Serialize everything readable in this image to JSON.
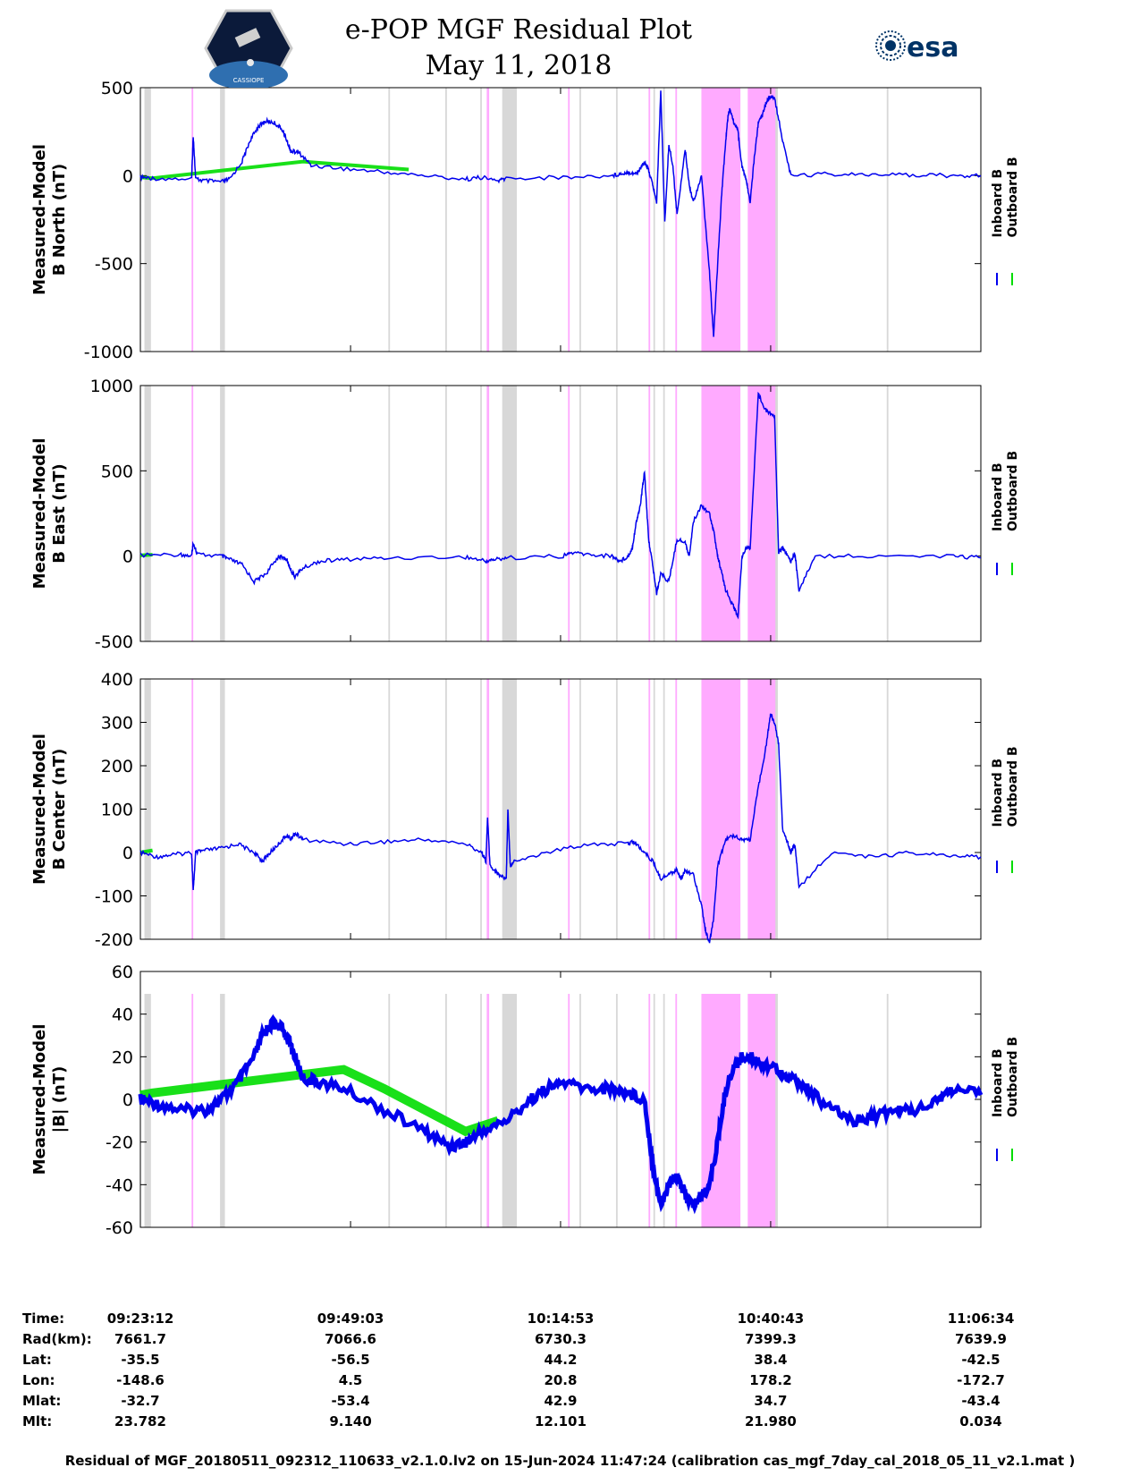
{
  "header": {
    "title": "e-POP MGF Residual Plot",
    "date": "May 11, 2018",
    "left_logo": "CASSIOPE mission logo",
    "left_logo_text": "CASSIOPE",
    "right_logo": "esa-logo",
    "right_logo_text": "esa"
  },
  "chart_data": {
    "type": "line",
    "x_range_minutes": [
      0,
      103.37
    ],
    "x_ticks_minutes": [
      0,
      25.85,
      51.68,
      77.52,
      103.37
    ],
    "colors": {
      "inboard": "#0000ee",
      "outboard": "#00dd00",
      "gray_band": "#d8d8d8",
      "pink_band": "#ffaaff"
    },
    "gray_bands": [
      [
        0.5,
        1.3
      ],
      [
        9.8,
        10.4
      ],
      [
        30.5,
        30.7
      ],
      [
        37.5,
        37.7
      ],
      [
        41.8,
        42.0
      ],
      [
        44.5,
        46.3
      ],
      [
        54.0,
        54.2
      ],
      [
        58.5,
        58.7
      ],
      [
        63.1,
        63.3
      ],
      [
        64.3,
        64.5
      ],
      [
        76.0,
        78.4
      ],
      [
        91.8,
        92.0
      ]
    ],
    "pink_bands": [
      [
        6.3,
        6.5
      ],
      [
        42.6,
        42.9
      ],
      [
        52.6,
        52.8
      ],
      [
        62.5,
        62.7
      ],
      [
        65.8,
        66.0
      ],
      [
        69.0,
        73.8
      ],
      [
        74.7,
        78.1
      ]
    ],
    "panels": [
      {
        "ylabel_line1": "Measured-Model",
        "ylabel_line2": "B North (nT)",
        "ylim": [
          -1000,
          500
        ],
        "yticks": [
          "500",
          "0",
          "-500",
          "-1000"
        ],
        "ytick_values": [
          500,
          0,
          -500,
          -1000
        ],
        "legend": [
          "Inboard B",
          "Outboard B"
        ],
        "outboard_x": [
          0.0,
          1.5,
          20.0,
          33.0
        ],
        "outboard_y": [
          -10,
          -15,
          80,
          35
        ],
        "inboard": {
          "x": [
            0,
            1.5,
            6.3,
            6.5,
            6.8,
            8.0,
            10.0,
            11.0,
            12.5,
            13.5,
            14.5,
            15.5,
            16.5,
            17.5,
            18.0,
            18.5,
            19.5,
            21.0,
            25.0,
            30.0,
            35.0,
            40.0,
            42.0,
            44.0,
            45.0,
            52.0,
            58.0,
            59.0,
            60.0,
            61.0,
            61.5,
            62.0,
            62.5,
            63.0,
            63.5,
            64.0,
            64.5,
            65.0,
            65.5,
            66.0,
            67.0,
            67.5,
            68.0,
            69.0,
            70.0,
            70.5,
            71.0,
            71.5,
            72.0,
            72.3,
            72.5,
            73.0,
            73.5,
            74.0,
            74.5,
            75.0,
            75.5,
            76.0,
            76.5,
            77.0,
            77.5,
            78.0,
            79.0,
            80.0,
            85.0,
            90.0,
            95.0,
            100.0,
            103.37
          ],
          "y": [
            -10,
            -15,
            -20,
            230,
            -20,
            -30,
            -35,
            -20,
            80,
            200,
            280,
            310,
            300,
            260,
            200,
            140,
            130,
            60,
            40,
            20,
            0,
            -20,
            -10,
            -30,
            -15,
            -10,
            0,
            10,
            20,
            10,
            40,
            80,
            30,
            -50,
            -150,
            480,
            -270,
            180,
            50,
            -220,
            150,
            -50,
            -150,
            0,
            -550,
            -920,
            -500,
            -100,
            200,
            350,
            380,
            300,
            250,
            50,
            -20,
            -150,
            100,
            300,
            350,
            420,
            450,
            440,
            200,
            0,
            10,
            0,
            5,
            0,
            0
          ]
        }
      },
      {
        "ylabel_line1": "Measured-Model",
        "ylabel_line2": "B East (nT)",
        "ylim": [
          -500,
          1000
        ],
        "yticks": [
          "1000",
          "500",
          "0",
          "-500"
        ],
        "ytick_values": [
          1000,
          500,
          0,
          -500
        ],
        "legend": [
          "Inboard B",
          "Outboard B"
        ],
        "outboard_x": [
          0.0,
          1.5
        ],
        "outboard_y": [
          5,
          8
        ],
        "inboard": {
          "x": [
            0,
            5.0,
            6.3,
            6.5,
            7.0,
            10.0,
            11.0,
            12.5,
            14.0,
            15.5,
            17.0,
            18.0,
            18.5,
            19.0,
            20.0,
            22.0,
            25.0,
            30.0,
            40.0,
            42.5,
            43.5,
            45.0,
            52.0,
            53.0,
            55.0,
            58.0,
            59.0,
            60.0,
            60.5,
            61.0,
            61.5,
            62.0,
            62.5,
            63.0,
            63.5,
            64.0,
            65.0,
            66.0,
            67.0,
            67.5,
            68.0,
            69.0,
            70.0,
            70.5,
            71.0,
            71.5,
            72.0,
            73.0,
            73.5,
            74.0,
            74.5,
            75.0,
            76.0,
            77.0,
            78.0,
            78.5,
            79.0,
            79.5,
            80.0,
            80.5,
            81.0,
            83.0,
            90.0,
            100.0,
            103.37
          ],
          "y": [
            5,
            10,
            0,
            80,
            10,
            0,
            -20,
            -50,
            -150,
            -100,
            0,
            -20,
            -80,
            -120,
            -70,
            -30,
            -20,
            -10,
            -5,
            -30,
            -20,
            -10,
            0,
            20,
            10,
            0,
            -30,
            0,
            50,
            200,
            300,
            500,
            100,
            -50,
            -220,
            -100,
            -150,
            100,
            80,
            0,
            200,
            300,
            250,
            150,
            0,
            -100,
            -200,
            -300,
            -360,
            0,
            50,
            50,
            950,
            850,
            820,
            20,
            50,
            10,
            -30,
            20,
            -200,
            0,
            0,
            0,
            -10
          ]
        }
      },
      {
        "ylabel_line1": "Measured-Model",
        "ylabel_line2": "B Center (nT)",
        "ylim": [
          -200,
          400
        ],
        "yticks": [
          "400",
          "300",
          "200",
          "100",
          "0",
          "-100",
          "-200"
        ],
        "ytick_values": [
          400,
          300,
          200,
          100,
          0,
          -100,
          -200
        ],
        "legend": [
          "Inboard B",
          "Outboard B"
        ],
        "outboard_x": [
          0.0,
          1.5
        ],
        "outboard_y": [
          0,
          5
        ],
        "inboard": {
          "x": [
            0,
            2.0,
            4.0,
            6.3,
            6.5,
            6.8,
            8.0,
            10.0,
            12.0,
            14.0,
            15.0,
            16.0,
            17.0,
            18.0,
            18.5,
            19.0,
            20.0,
            25.0,
            30.0,
            35.0,
            40.0,
            42.0,
            42.5,
            42.7,
            43.0,
            44.0,
            45.0,
            45.2,
            45.5,
            46.0,
            50.0,
            55.0,
            60.0,
            60.5,
            61.0,
            62.0,
            63.0,
            64.0,
            65.0,
            66.0,
            66.5,
            67.0,
            68.0,
            69.0,
            69.5,
            70.0,
            70.5,
            71.0,
            72.0,
            73.0,
            74.0,
            75.0,
            76.0,
            77.0,
            77.5,
            78.0,
            78.5,
            79.0,
            79.5,
            80.0,
            80.5,
            81.0,
            85.0,
            90.0,
            95.0,
            100.0,
            103.37
          ],
          "y": [
            0,
            -10,
            -5,
            0,
            -90,
            0,
            5,
            10,
            20,
            0,
            -20,
            0,
            20,
            40,
            30,
            45,
            30,
            20,
            25,
            30,
            20,
            0,
            -20,
            80,
            -30,
            -50,
            -60,
            100,
            -30,
            -20,
            0,
            20,
            20,
            25,
            20,
            0,
            -20,
            -60,
            -50,
            -40,
            -60,
            -40,
            -50,
            -120,
            -180,
            -210,
            -150,
            -30,
            30,
            40,
            30,
            30,
            150,
            250,
            320,
            300,
            250,
            50,
            30,
            0,
            20,
            -80,
            0,
            -10,
            0,
            -10,
            -10
          ]
        }
      },
      {
        "ylabel_line1": "Measured-Model",
        "ylabel_line2": "|B| (nT)",
        "ylim": [
          -60,
          60
        ],
        "yticks": [
          "60",
          "40",
          "20",
          "0",
          "-20",
          "-40",
          "-60"
        ],
        "ytick_values": [
          60,
          40,
          20,
          0,
          -20,
          -40,
          -60
        ],
        "legend": [
          "Inboard B",
          "Outboard B"
        ],
        "outboard_x": [
          0.0,
          1.5,
          25.0,
          30.0,
          35.0,
          40.0,
          44.0
        ],
        "outboard_y": [
          2,
          3,
          14,
          5,
          -5,
          -15,
          -10
        ],
        "inboard": {
          "x": [
            0,
            2.0,
            5.0,
            8.0,
            10.0,
            12.0,
            14.0,
            15.0,
            16.0,
            17.0,
            18.0,
            19.0,
            20.0,
            22.0,
            25.0,
            30.0,
            35.0,
            38.0,
            40.0,
            42.0,
            45.0,
            48.0,
            50.0,
            52.0,
            55.0,
            58.0,
            60.0,
            62.0,
            63.0,
            64.0,
            65.0,
            66.0,
            67.0,
            68.0,
            69.0,
            70.0,
            71.0,
            72.0,
            73.0,
            74.0,
            75.0,
            76.0,
            78.0,
            80.0,
            82.0,
            85.0,
            88.0,
            90.0,
            93.0,
            95.0,
            98.0,
            100.0,
            103.37
          ],
          "y": [
            0,
            -2,
            -5,
            -5,
            0,
            8,
            20,
            30,
            35,
            35,
            30,
            20,
            10,
            8,
            5,
            -5,
            -15,
            -22,
            -20,
            -15,
            -10,
            0,
            5,
            8,
            5,
            5,
            3,
            0,
            -30,
            -50,
            -40,
            -35,
            -45,
            -50,
            -45,
            -40,
            -20,
            5,
            15,
            20,
            20,
            18,
            15,
            10,
            5,
            -5,
            -10,
            -8,
            -5,
            -5,
            0,
            5,
            2
          ]
        }
      }
    ],
    "time_axis": {
      "labels": [
        "Time:",
        "Rad(km):",
        "Lat:",
        "Lon:",
        "Mlat:",
        "Mlt:"
      ],
      "columns": [
        {
          "time": "09:23:12",
          "rad": "7661.7",
          "lat": "-35.5",
          "lon": "-148.6",
          "mlat": "-32.7",
          "mlt": "23.782"
        },
        {
          "time": "09:49:03",
          "rad": "7066.6",
          "lat": "-56.5",
          "lon": "4.5",
          "mlat": "-53.4",
          "mlt": "9.140"
        },
        {
          "time": "10:14:53",
          "rad": "6730.3",
          "lat": "44.2",
          "lon": "20.8",
          "mlat": "42.9",
          "mlt": "12.101"
        },
        {
          "time": "10:40:43",
          "rad": "7399.3",
          "lat": "38.4",
          "lon": "178.2",
          "mlat": "34.7",
          "mlt": "21.980"
        },
        {
          "time": "11:06:34",
          "rad": "7639.9",
          "lat": "-42.5",
          "lon": "-172.7",
          "mlat": "-43.4",
          "mlt": "0.034"
        }
      ]
    }
  },
  "footer": "Residual of MGF_20180511_092312_110633_v2.1.0.lv2 on 15-Jun-2024 11:47:24 (calibration cas_mgf_7day_cal_2018_05_11_v2.1.mat )"
}
